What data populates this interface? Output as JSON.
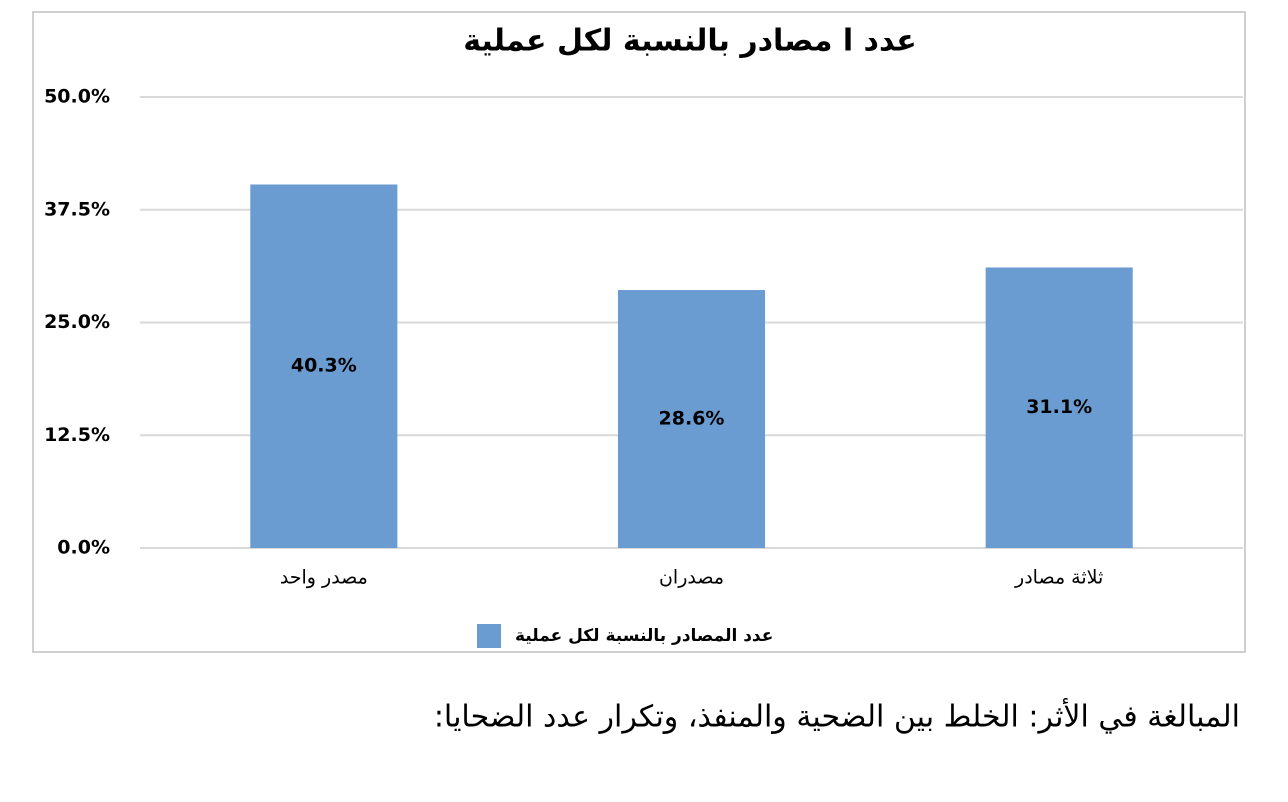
{
  "chart_data": {
    "type": "bar",
    "title": "عدد ا مصادر بالنسبة لكل عملية",
    "categories": [
      "مصدر واحد",
      "مصدران",
      "ثلاثة مصادر"
    ],
    "series": [
      {
        "name": "عدد المصادر بالنسبة لكل عملية",
        "color": "#6a9bd1",
        "values": [
          40.3,
          28.6,
          31.1
        ],
        "value_labels": [
          "40.3%",
          "28.6%",
          "31.1%"
        ]
      }
    ],
    "ylim": [
      0,
      50
    ],
    "yticks": [
      {
        "value": 0,
        "label": "0.0%"
      },
      {
        "value": 12.5,
        "label": "12.5%"
      },
      {
        "value": 25,
        "label": "25.0%"
      },
      {
        "value": 37.5,
        "label": "37.5%"
      },
      {
        "value": 50,
        "label": "50.0%"
      }
    ],
    "grid": true,
    "legend": "bottom"
  },
  "caption": "المبالغة في الأثر: الخلط بين الضحية والمنفذ، وتكرار عدد الضحايا:"
}
